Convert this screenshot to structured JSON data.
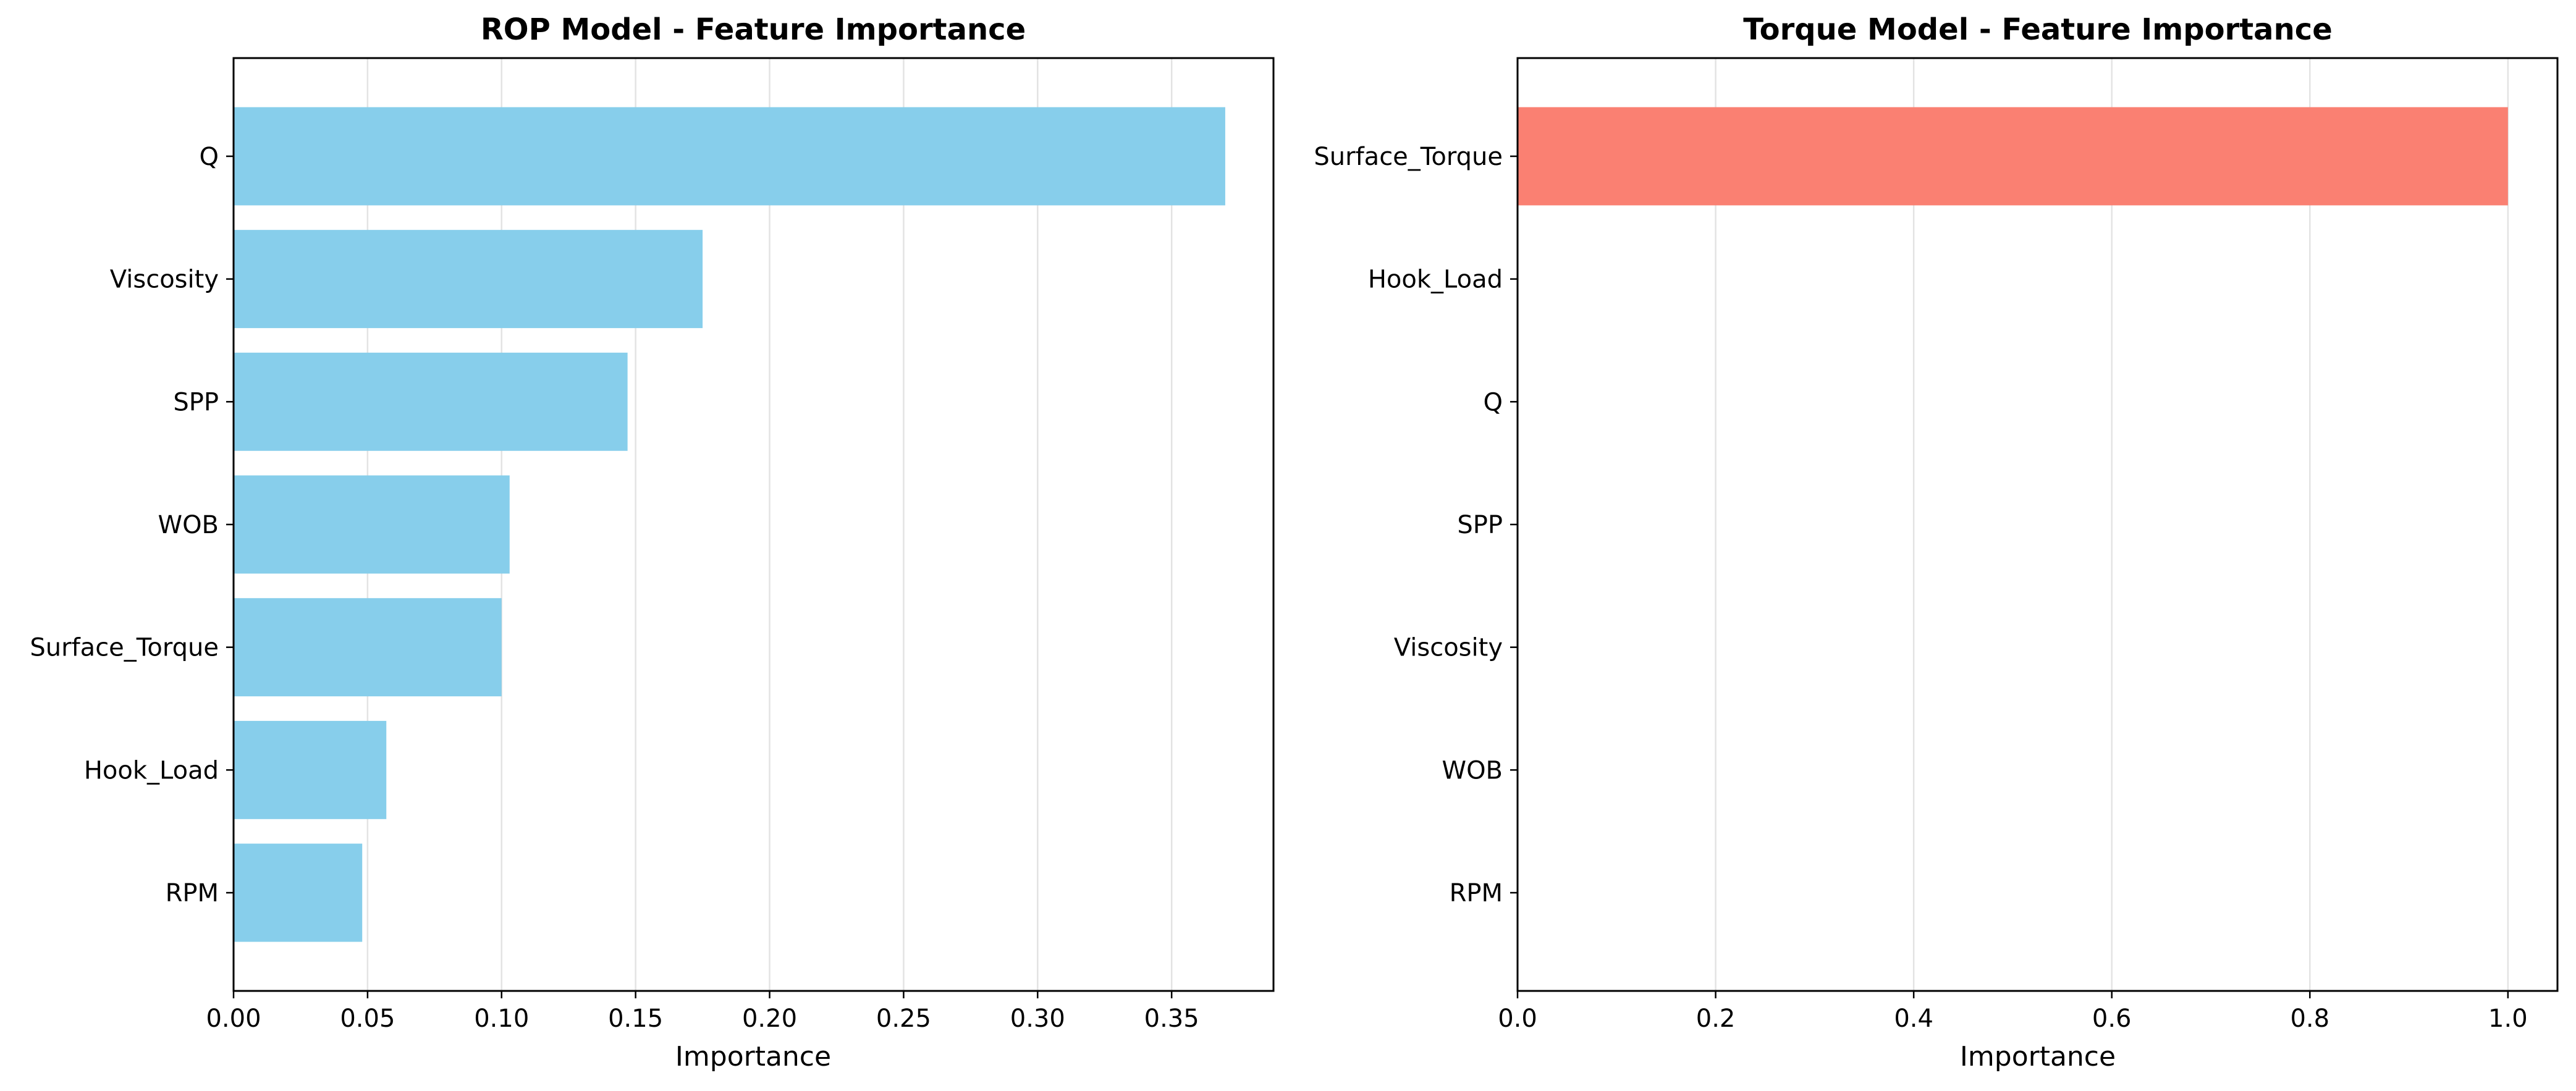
{
  "chart_data": [
    {
      "type": "bar",
      "orientation": "horizontal",
      "title": "ROP Model - Feature Importance",
      "xlabel": "Importance",
      "ylabel": "",
      "categories": [
        "Q",
        "Viscosity",
        "SPP",
        "WOB",
        "Surface_Torque",
        "Hook_Load",
        "RPM"
      ],
      "values": [
        0.37,
        0.175,
        0.147,
        0.103,
        0.1,
        0.057,
        0.048
      ],
      "xlim": [
        0,
        0.388
      ],
      "xticks": [
        0,
        0.05,
        0.1,
        0.15,
        0.2,
        0.25,
        0.3,
        0.35
      ],
      "xtick_labels": [
        "0.00",
        "0.05",
        "0.10",
        "0.15",
        "0.20",
        "0.25",
        "0.30",
        "0.35"
      ],
      "bar_color": "#87CEEB",
      "grid": "x-axis, vertical lines"
    },
    {
      "type": "bar",
      "orientation": "horizontal",
      "title": "Torque Model - Feature Importance",
      "xlabel": "Importance",
      "ylabel": "",
      "categories": [
        "Surface_Torque",
        "Hook_Load",
        "Q",
        "SPP",
        "Viscosity",
        "WOB",
        "RPM"
      ],
      "values": [
        1.0,
        0,
        0,
        0,
        0,
        0,
        0
      ],
      "xlim": [
        0,
        1.05
      ],
      "xticks": [
        0,
        0.2,
        0.4,
        0.6,
        0.8,
        1.0
      ],
      "xtick_labels": [
        "0.0",
        "0.2",
        "0.4",
        "0.6",
        "0.8",
        "1.0"
      ],
      "bar_color": "#FA8072",
      "grid": "x-axis, vertical lines"
    }
  ]
}
